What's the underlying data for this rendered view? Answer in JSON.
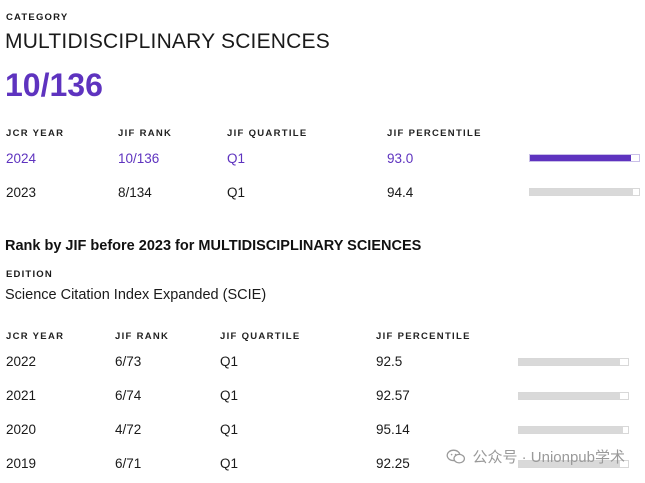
{
  "category": {
    "label": "CATEGORY",
    "name": "MULTIDISCIPLINARY SCIENCES",
    "rank": "10/136"
  },
  "current_table": {
    "headers": [
      "JCR YEAR",
      "JIF RANK",
      "JIF QUARTILE",
      "JIF PERCENTILE"
    ],
    "rows": [
      {
        "year": "2024",
        "rank": "10/136",
        "quartile": "Q1",
        "percentile": "93.0",
        "percentile_value": 93.0,
        "highlighted": true
      },
      {
        "year": "2023",
        "rank": "8/134",
        "quartile": "Q1",
        "percentile": "94.4",
        "percentile_value": 94.4,
        "highlighted": false
      }
    ]
  },
  "before_section": {
    "title": "Rank by JIF before 2023 for MULTIDISCIPLINARY SCIENCES",
    "edition_label": "EDITION",
    "edition_value": "Science Citation Index Expanded (SCIE)",
    "headers": [
      "JCR YEAR",
      "JIF RANK",
      "JIF QUARTILE",
      "JIF PERCENTILE"
    ],
    "rows": [
      {
        "year": "2022",
        "rank": "6/73",
        "quartile": "Q1",
        "percentile": "92.5",
        "percentile_value": 92.5
      },
      {
        "year": "2021",
        "rank": "6/74",
        "quartile": "Q1",
        "percentile": "92.57",
        "percentile_value": 92.57
      },
      {
        "year": "2020",
        "rank": "4/72",
        "quartile": "Q1",
        "percentile": "95.14",
        "percentile_value": 95.14
      },
      {
        "year": "2019",
        "rank": "6/71",
        "quartile": "Q1",
        "percentile": "92.25",
        "percentile_value": 92.25
      }
    ]
  },
  "watermark": {
    "text": "公众号 · Unionpub学术",
    "icon": "wechat-icon"
  },
  "colors": {
    "accent": "#5e33bf",
    "bar_track": "#d9d9d9"
  }
}
